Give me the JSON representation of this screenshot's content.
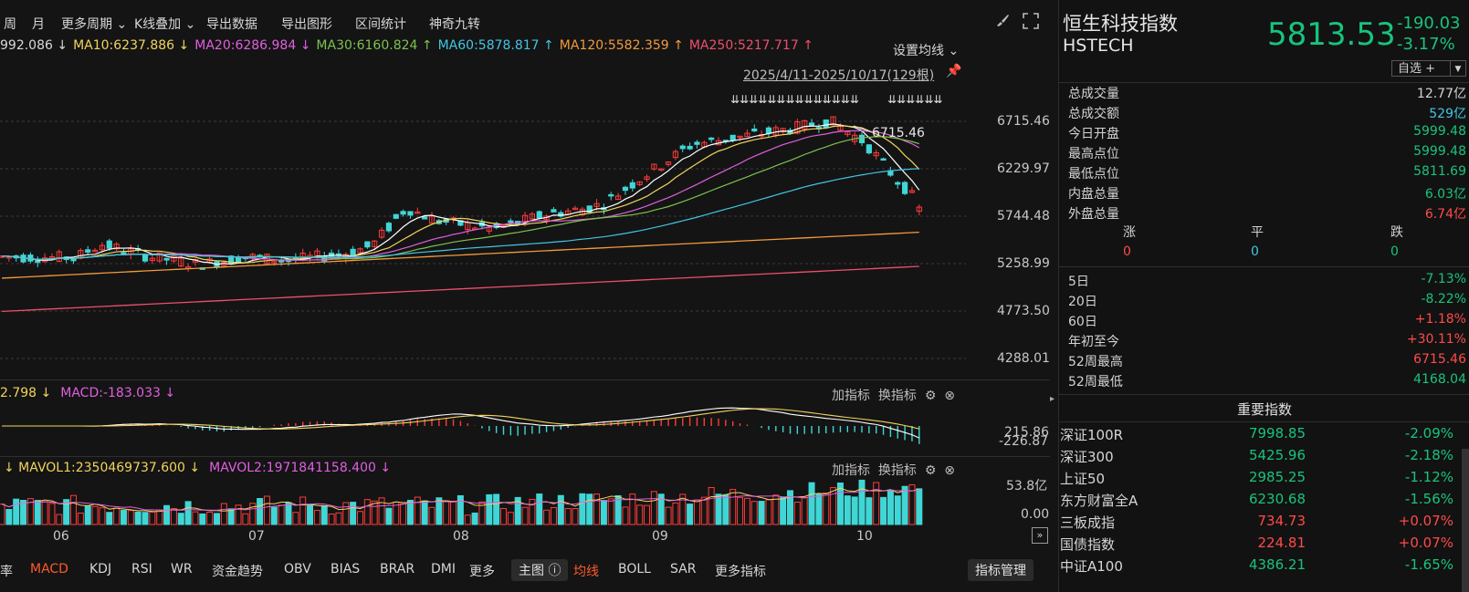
{
  "toolbar": {
    "items": [
      "周",
      "月",
      "更多周期",
      "K线叠加",
      "导出数据",
      "导出图形",
      "区间统计",
      "神奇九转"
    ]
  },
  "ma_legend": [
    {
      "label": "992.086 ↓",
      "color": "#d8d8d8"
    },
    {
      "label": "MA10:6237.886 ↓",
      "color": "#f2d35c"
    },
    {
      "label": "MA20:6286.984 ↓",
      "color": "#e05fe0"
    },
    {
      "label": "MA30:6160.824 ↑",
      "color": "#7cc24f"
    },
    {
      "label": "MA60:5878.817 ↑",
      "color": "#43c5e3"
    },
    {
      "label": "MA120:5582.359 ↑",
      "color": "#f39a3c"
    },
    {
      "label": "MA250:5217.717 ↑",
      "color": "#ef4f6b"
    }
  ],
  "set_ma_label": "设置均线",
  "range_label": "2025/4/11-2025/10/17(129根)",
  "peak_label": "6715.46",
  "arrows_group1": "⇊⇊⇊⇊⇊⇊⇊⇊⇊⇊⇊⇊⇊⇊",
  "arrows_group2": "⇊⇊⇊⇊⇊⇊",
  "price_axis": [
    "6715.46",
    "6229.97",
    "5744.48",
    "5258.99",
    "4773.50",
    "4288.01"
  ],
  "macd_legend": [
    {
      "label": "2.798 ↓",
      "color": "#f2d35c"
    },
    {
      "label": "MACD:-183.033 ↓",
      "color": "#e05fe0"
    }
  ],
  "macd_axis": [
    "215.86",
    "-226.87"
  ],
  "vol_legend": [
    {
      "label": "↓ MAVOL1:2350469737.600 ↓",
      "color": "#f2d35c"
    },
    {
      "label": "MAVOL2:1971841158.400 ↓",
      "color": "#e05fe0"
    }
  ],
  "vol_axis": [
    "53.8亿",
    "0.00"
  ],
  "panel_buttons": {
    "add": "加指标",
    "switch": "换指标"
  },
  "month_labels": [
    "06",
    "07",
    "08",
    "09",
    "10"
  ],
  "bottom_tabs": [
    "率",
    "MACD",
    "KDJ",
    "RSI",
    "WR",
    "资金趋势",
    "OBV",
    "BIAS",
    "BRAR",
    "DMI",
    "更多",
    "主图",
    "均线",
    "BOLL",
    "SAR",
    "更多指标"
  ],
  "indicator_mgmt": "指标管理",
  "quote": {
    "name_cn": "恒生科技指数",
    "name_en": "HSTECH",
    "price": "5813.53",
    "change": "-190.03",
    "change_pct": "-3.17%",
    "watch": "自选 +"
  },
  "stats": [
    {
      "k": "总成交量",
      "v": "12.77亿",
      "color": "#d4d4d4"
    },
    {
      "k": "总成交额",
      "v": "529亿",
      "color": "#43c5e3"
    },
    {
      "k": "今日开盘",
      "v": "5999.48",
      "color": "#19c37d"
    },
    {
      "k": "最高点位",
      "v": "5999.48",
      "color": "#19c37d"
    },
    {
      "k": "最低点位",
      "v": "5811.69",
      "color": "#19c37d"
    },
    {
      "k": "内盘总量",
      "v": "6.03亿",
      "color": "#19c37d"
    },
    {
      "k": "外盘总量",
      "v": "6.74亿",
      "color": "#ff4a4a"
    }
  ],
  "breadth": {
    "up_label": "涨",
    "flat_label": "平",
    "down_label": "跌",
    "up": "0",
    "flat": "0",
    "down": "0"
  },
  "periods": [
    {
      "k": "5日",
      "v": "-7.13%",
      "color": "#19c37d"
    },
    {
      "k": "20日",
      "v": "-8.22%",
      "color": "#19c37d"
    },
    {
      "k": "60日",
      "v": "+1.18%",
      "color": "#ff4a4a"
    },
    {
      "k": "年初至今",
      "v": "+30.11%",
      "color": "#ff4a4a"
    },
    {
      "k": "52周最高",
      "v": "6715.46",
      "color": "#ff4a4a"
    },
    {
      "k": "52周最低",
      "v": "4168.04",
      "color": "#19c37d"
    }
  ],
  "important_title": "重要指数",
  "indices": [
    {
      "n": "深证100R",
      "p": "7998.85",
      "c": "-2.09%",
      "color": "#19c37d"
    },
    {
      "n": "深证300",
      "p": "5425.96",
      "c": "-2.18%",
      "color": "#19c37d"
    },
    {
      "n": "上证50",
      "p": "2985.25",
      "c": "-1.12%",
      "color": "#19c37d"
    },
    {
      "n": "东方财富全A",
      "p": "6230.68",
      "c": "-1.56%",
      "color": "#19c37d"
    },
    {
      "n": "三板成指",
      "p": "734.73",
      "c": "+0.07%",
      "color": "#ff4a4a"
    },
    {
      "n": "国债指数",
      "p": "224.81",
      "c": "+0.07%",
      "color": "#ff4a4a"
    },
    {
      "n": "中证A100",
      "p": "4386.21",
      "c": "-1.65%",
      "color": "#19c37d"
    }
  ]
}
